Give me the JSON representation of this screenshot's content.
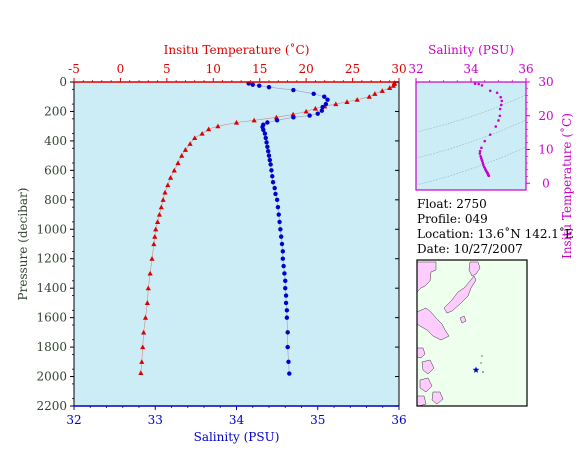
{
  "colors": {
    "plot_bg": "#ccecf6",
    "temperature": "#dd0000",
    "salinity": "#0000cc",
    "pressure_axis": "#000000",
    "tsdiagram": "#cc00cc",
    "map_land": "#ffccff",
    "map_sea": "#eeffee"
  },
  "info": {
    "float_line": "Float:  2750",
    "profile_line": "Profile:  049",
    "location_line": "Location:  13.6˚N  142.1˚E",
    "date_line": "Date:  10/27/2007"
  },
  "chart_data": [
    {
      "type": "line",
      "ylabel": "Pressure (decibar)",
      "yticks": [
        0,
        200,
        400,
        600,
        800,
        1000,
        1200,
        1400,
        1600,
        1800,
        2000,
        2200
      ],
      "ylim": [
        2200,
        0
      ],
      "top_axis": {
        "label": "Insitu Temperature (˚C)",
        "ticks": [
          -5,
          0,
          5,
          10,
          15,
          20,
          25,
          30
        ],
        "lim": [
          -5,
          30
        ]
      },
      "bottom_axis": {
        "label": "Salinity (PSU)",
        "ticks": [
          32,
          33,
          34,
          35,
          36
        ],
        "lim": [
          32,
          36
        ]
      },
      "series": [
        {
          "axis": "temperature",
          "marker": "triangle",
          "points": [
            [
              29.5,
              5
            ],
            [
              29.5,
              12
            ],
            [
              29.4,
              25
            ],
            [
              29.0,
              40
            ],
            [
              28.2,
              60
            ],
            [
              27.4,
              80
            ],
            [
              26.8,
              100
            ],
            [
              25.5,
              120
            ],
            [
              24.4,
              135
            ],
            [
              23.2,
              150
            ],
            [
              22.0,
              165
            ],
            [
              21.0,
              180
            ],
            [
              20.0,
              200
            ],
            [
              18.6,
              220
            ],
            [
              16.8,
              240
            ],
            [
              14.4,
              260
            ],
            [
              12.5,
              275
            ],
            [
              10.5,
              300
            ],
            [
              9.5,
              320
            ],
            [
              8.8,
              350
            ],
            [
              8.0,
              380
            ],
            [
              7.5,
              420
            ],
            [
              7.0,
              460
            ],
            [
              6.6,
              500
            ],
            [
              6.2,
              550
            ],
            [
              5.8,
              600
            ],
            [
              5.4,
              650
            ],
            [
              5.1,
              700
            ],
            [
              4.8,
              750
            ],
            [
              4.6,
              800
            ],
            [
              4.4,
              850
            ],
            [
              4.2,
              900
            ],
            [
              4.0,
              950
            ],
            [
              3.8,
              1000
            ],
            [
              3.7,
              1050
            ],
            [
              3.6,
              1100
            ],
            [
              3.4,
              1200
            ],
            [
              3.2,
              1300
            ],
            [
              3.0,
              1400
            ],
            [
              2.9,
              1500
            ],
            [
              2.7,
              1600
            ],
            [
              2.5,
              1700
            ],
            [
              2.4,
              1800
            ],
            [
              2.3,
              1900
            ],
            [
              2.2,
              1975
            ]
          ]
        },
        {
          "axis": "salinity",
          "marker": "circle",
          "points": [
            [
              34.15,
              10
            ],
            [
              34.2,
              18
            ],
            [
              34.28,
              25
            ],
            [
              34.4,
              35
            ],
            [
              34.7,
              55
            ],
            [
              34.95,
              80
            ],
            [
              35.08,
              100
            ],
            [
              35.12,
              120
            ],
            [
              35.1,
              150
            ],
            [
              35.06,
              170
            ],
            [
              35.05,
              195
            ],
            [
              35.0,
              215
            ],
            [
              34.9,
              228
            ],
            [
              34.7,
              240
            ],
            [
              34.5,
              260
            ],
            [
              34.38,
              275
            ],
            [
              34.33,
              290
            ],
            [
              34.32,
              305
            ],
            [
              34.33,
              325
            ],
            [
              34.35,
              350
            ],
            [
              34.36,
              380
            ],
            [
              34.37,
              410
            ],
            [
              34.38,
              440
            ],
            [
              34.39,
              470
            ],
            [
              34.4,
              500
            ],
            [
              34.41,
              530
            ],
            [
              34.42,
              560
            ],
            [
              34.43,
              600
            ],
            [
              34.44,
              640
            ],
            [
              34.45,
              680
            ],
            [
              34.47,
              720
            ],
            [
              34.48,
              760
            ],
            [
              34.5,
              800
            ],
            [
              34.51,
              850
            ],
            [
              34.52,
              900
            ],
            [
              34.53,
              950
            ],
            [
              34.54,
              1000
            ],
            [
              34.55,
              1050
            ],
            [
              34.56,
              1100
            ],
            [
              34.57,
              1150
            ],
            [
              34.57,
              1200
            ],
            [
              34.58,
              1250
            ],
            [
              34.59,
              1300
            ],
            [
              34.6,
              1350
            ],
            [
              34.6,
              1400
            ],
            [
              34.61,
              1450
            ],
            [
              34.61,
              1500
            ],
            [
              34.62,
              1550
            ],
            [
              34.62,
              1600
            ],
            [
              34.63,
              1700
            ],
            [
              34.63,
              1800
            ],
            [
              34.64,
              1900
            ],
            [
              34.65,
              1980
            ]
          ]
        }
      ]
    },
    {
      "type": "scatter",
      "xlabel": "Salinity (PSU)",
      "ylabel": "Insitu Temperature (˚C)",
      "xticks": [
        32,
        34,
        36
      ],
      "xlim": [
        32,
        36
      ],
      "yticks": [
        0,
        10,
        20,
        30
      ],
      "ylim": [
        -2,
        30
      ],
      "points": [
        [
          34.15,
          29.5
        ],
        [
          34.28,
          29.4
        ],
        [
          34.4,
          29.0
        ],
        [
          34.7,
          27.4
        ],
        [
          34.95,
          26.8
        ],
        [
          35.08,
          25.5
        ],
        [
          35.12,
          24.4
        ],
        [
          35.1,
          23.2
        ],
        [
          35.06,
          22.0
        ],
        [
          35.05,
          20.0
        ],
        [
          35.0,
          18.6
        ],
        [
          34.9,
          16.8
        ],
        [
          34.7,
          14.4
        ],
        [
          34.5,
          12.5
        ],
        [
          34.38,
          10.5
        ],
        [
          34.33,
          9.5
        ],
        [
          34.32,
          8.8
        ],
        [
          34.35,
          8.0
        ],
        [
          34.37,
          7.5
        ],
        [
          34.39,
          7.0
        ],
        [
          34.41,
          6.6
        ],
        [
          34.43,
          6.0
        ],
        [
          34.45,
          5.4
        ],
        [
          34.48,
          4.8
        ],
        [
          34.51,
          4.4
        ],
        [
          34.53,
          4.0
        ],
        [
          34.55,
          3.7
        ],
        [
          34.57,
          3.4
        ],
        [
          34.59,
          3.2
        ],
        [
          34.6,
          3.0
        ],
        [
          34.61,
          2.9
        ],
        [
          34.62,
          2.7
        ],
        [
          34.63,
          2.5
        ],
        [
          34.63,
          2.4
        ],
        [
          34.64,
          2.3
        ],
        [
          34.65,
          2.2
        ]
      ]
    },
    {
      "type": "map",
      "marker": "star",
      "location": {
        "lat": 13.6,
        "lon": 142.1
      }
    }
  ]
}
